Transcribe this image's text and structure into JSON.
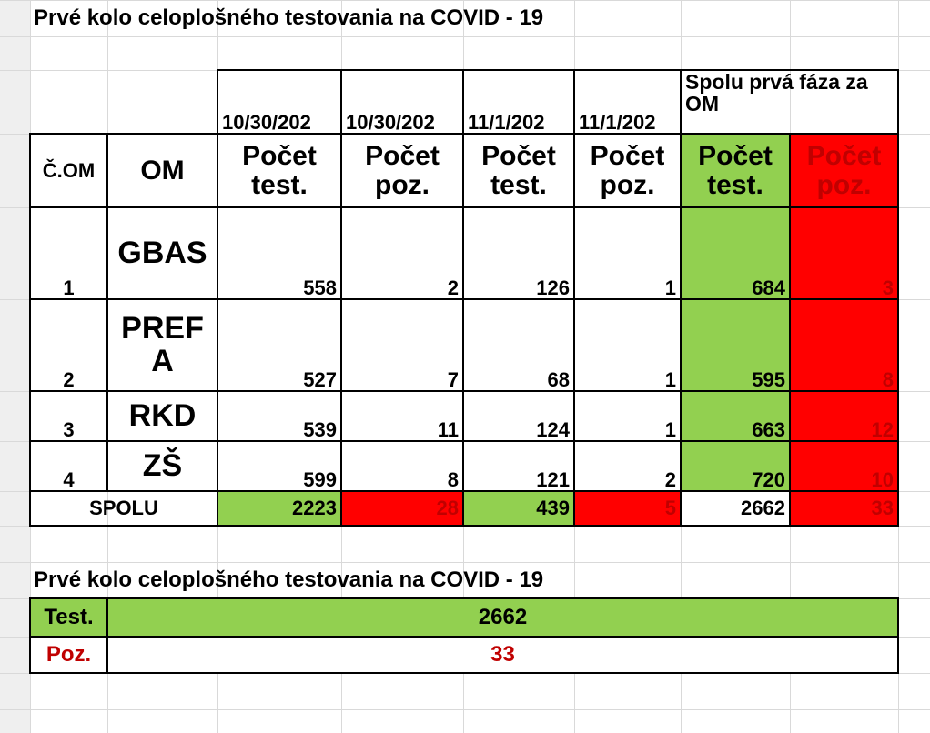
{
  "title": "Prvé kolo celoplošného testovania na COVID - 19",
  "table": {
    "dates": [
      "10/30/202",
      "10/30/202",
      "11/1/202",
      "11/1/202"
    ],
    "group_header": "Spolu prvá fáza za OM",
    "headers": [
      "Č.OM",
      "OM",
      "Počet test.",
      "Počet poz.",
      "Počet test.",
      "Počet poz.",
      "Počet test.",
      "Počet poz."
    ],
    "rows": [
      [
        "1",
        "GBAS",
        558,
        2,
        126,
        1,
        684,
        3
      ],
      [
        "2",
        "PREFA",
        527,
        7,
        68,
        1,
        595,
        8
      ],
      [
        "3",
        "RKD",
        539,
        11,
        124,
        1,
        663,
        12
      ],
      [
        "4",
        "ZŠ",
        599,
        8,
        121,
        2,
        720,
        10
      ]
    ],
    "total": {
      "label": "SPOLU",
      "values": [
        2223,
        28,
        439,
        5,
        2662,
        33
      ]
    }
  },
  "summary": {
    "title": "Prvé kolo celoplošného testovania na COVID - 19",
    "rows": [
      {
        "label": "Test.",
        "value": 2662
      },
      {
        "label": "Poz.",
        "value": 33
      }
    ]
  }
}
